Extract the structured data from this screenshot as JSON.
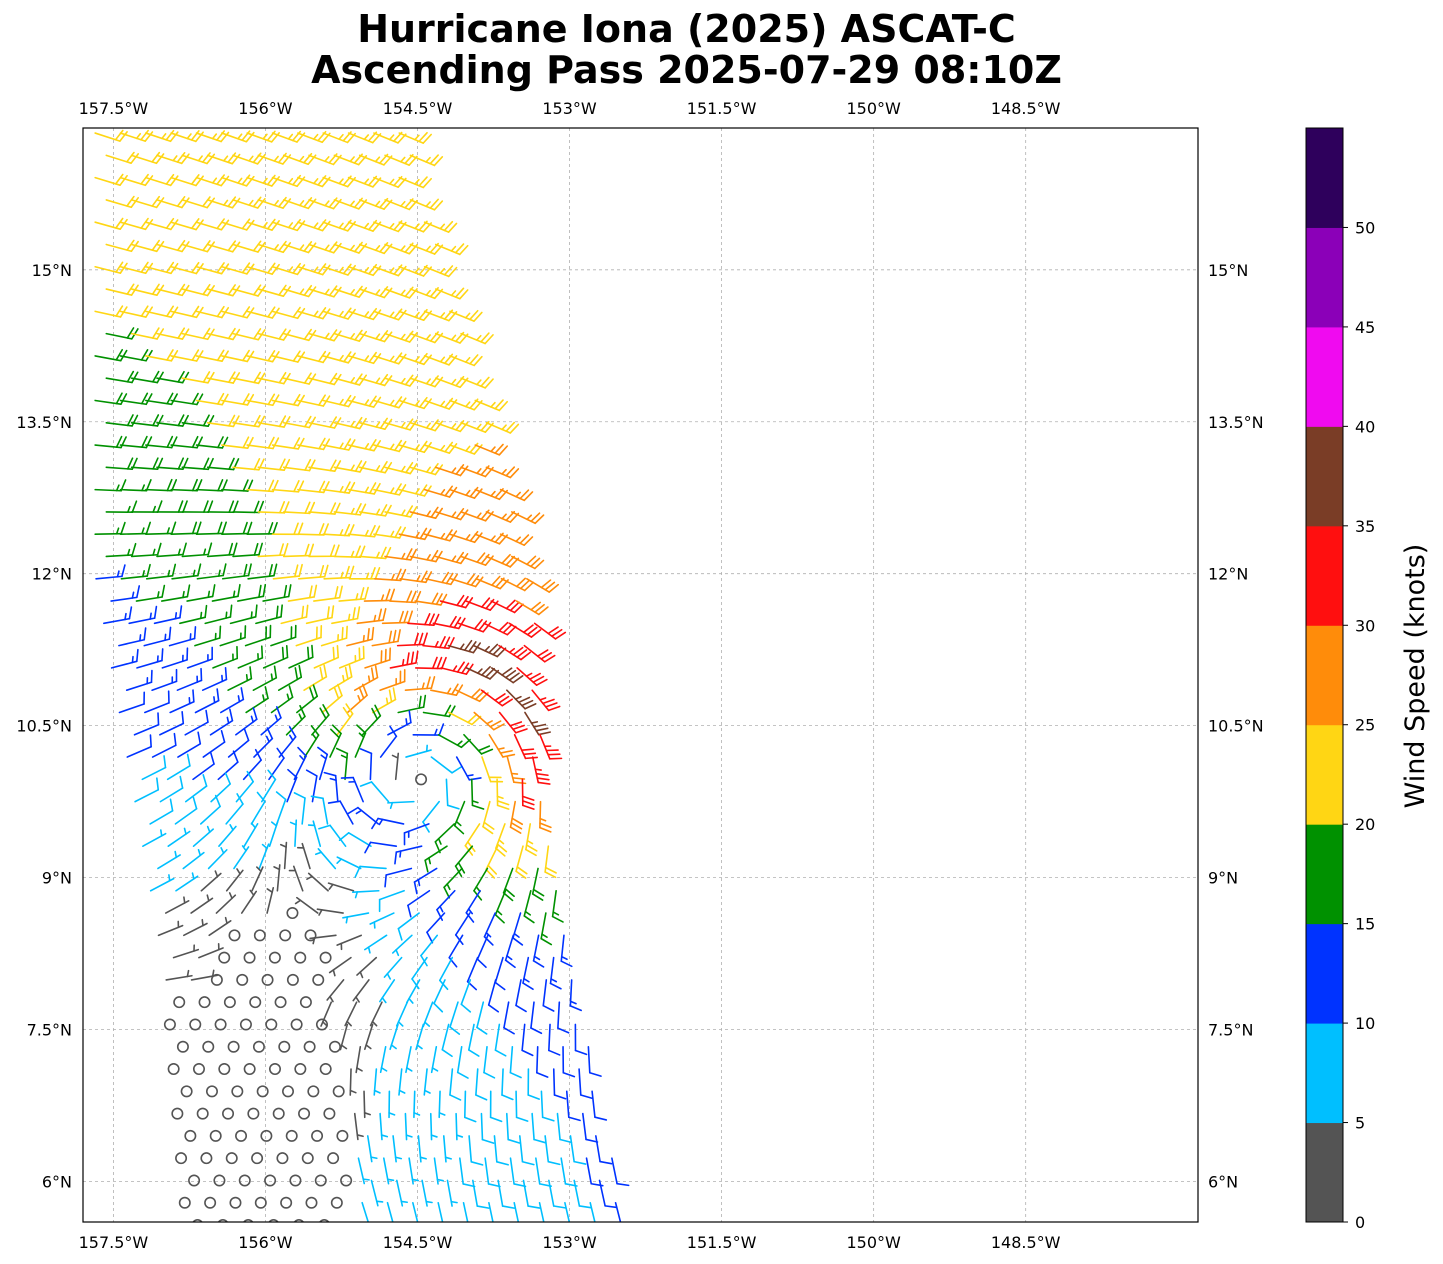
{
  "title": {
    "line1": "Hurricane Iona (2025) ASCAT-C",
    "line2": "Ascending Pass 2025-07-29 08:10Z"
  },
  "map": {
    "lon_range": [
      -157.8,
      -146.8
    ],
    "lat_range": [
      5.6,
      16.4
    ],
    "lon_ticks": [
      {
        "value": -157.5,
        "label": "157.5°W"
      },
      {
        "value": -156,
        "label": "156°W"
      },
      {
        "value": -154.5,
        "label": "154.5°W"
      },
      {
        "value": -153,
        "label": "153°W"
      },
      {
        "value": -151.5,
        "label": "151.5°W"
      },
      {
        "value": -150,
        "label": "150°W"
      },
      {
        "value": -148.5,
        "label": "148.5°W"
      }
    ],
    "lat_ticks": [
      {
        "value": 15,
        "label": "15°N"
      },
      {
        "value": 13.5,
        "label": "13.5°N"
      },
      {
        "value": 12,
        "label": "12°N"
      },
      {
        "value": 10.5,
        "label": "10.5°N"
      },
      {
        "value": 9,
        "label": "9°N"
      },
      {
        "value": 7.5,
        "label": "7.5°N"
      },
      {
        "value": 6,
        "label": "6°N"
      }
    ],
    "gridlines": true,
    "gridline_color": "#b0b0b0",
    "swath_edges": {
      "west": [
        {
          "lat": 16.4,
          "lon": -157.8
        },
        {
          "lat": 12.0,
          "lon": -157.8
        },
        {
          "lat": 8.0,
          "lon": -157.1
        },
        {
          "lat": 5.6,
          "lon": -156.9
        }
      ],
      "east": [
        {
          "lat": 16.4,
          "lon": -154.6
        },
        {
          "lat": 12.0,
          "lon": -153.3
        },
        {
          "lat": 10.0,
          "lon": -153.2
        },
        {
          "lat": 8.0,
          "lon": -152.9
        },
        {
          "lat": 5.6,
          "lon": -152.4
        }
      ]
    },
    "storm_center": {
      "lat": 10.3,
      "lon": -154.3
    },
    "wind_field_model": {
      "ambient_u": -10,
      "ambient_v": 7,
      "vortex_max_kt": 26,
      "vortex_radius_deg": 0.9,
      "south_calm_zone": {
        "lat_max": 7.8,
        "lon_max": -155.2
      }
    }
  },
  "colorbar": {
    "label": "Wind Speed (knots)",
    "bounds": [
      0,
      5,
      10,
      15,
      20,
      25,
      30,
      35,
      40,
      45,
      50,
      55
    ],
    "tick_values": [
      0,
      5,
      10,
      15,
      20,
      25,
      30,
      35,
      40,
      45,
      50
    ],
    "tick_labels": [
      "0",
      "5",
      "10",
      "15",
      "20",
      "25",
      "30",
      "35",
      "40",
      "45",
      "50"
    ],
    "colors": [
      "#545454",
      "#00bfff",
      "#0033ff",
      "#009100",
      "#ffd614",
      "#ff8c0a",
      "#ff0f0f",
      "#7a3d26",
      "#f00af0",
      "#8b00b8",
      "#2e005c"
    ]
  }
}
